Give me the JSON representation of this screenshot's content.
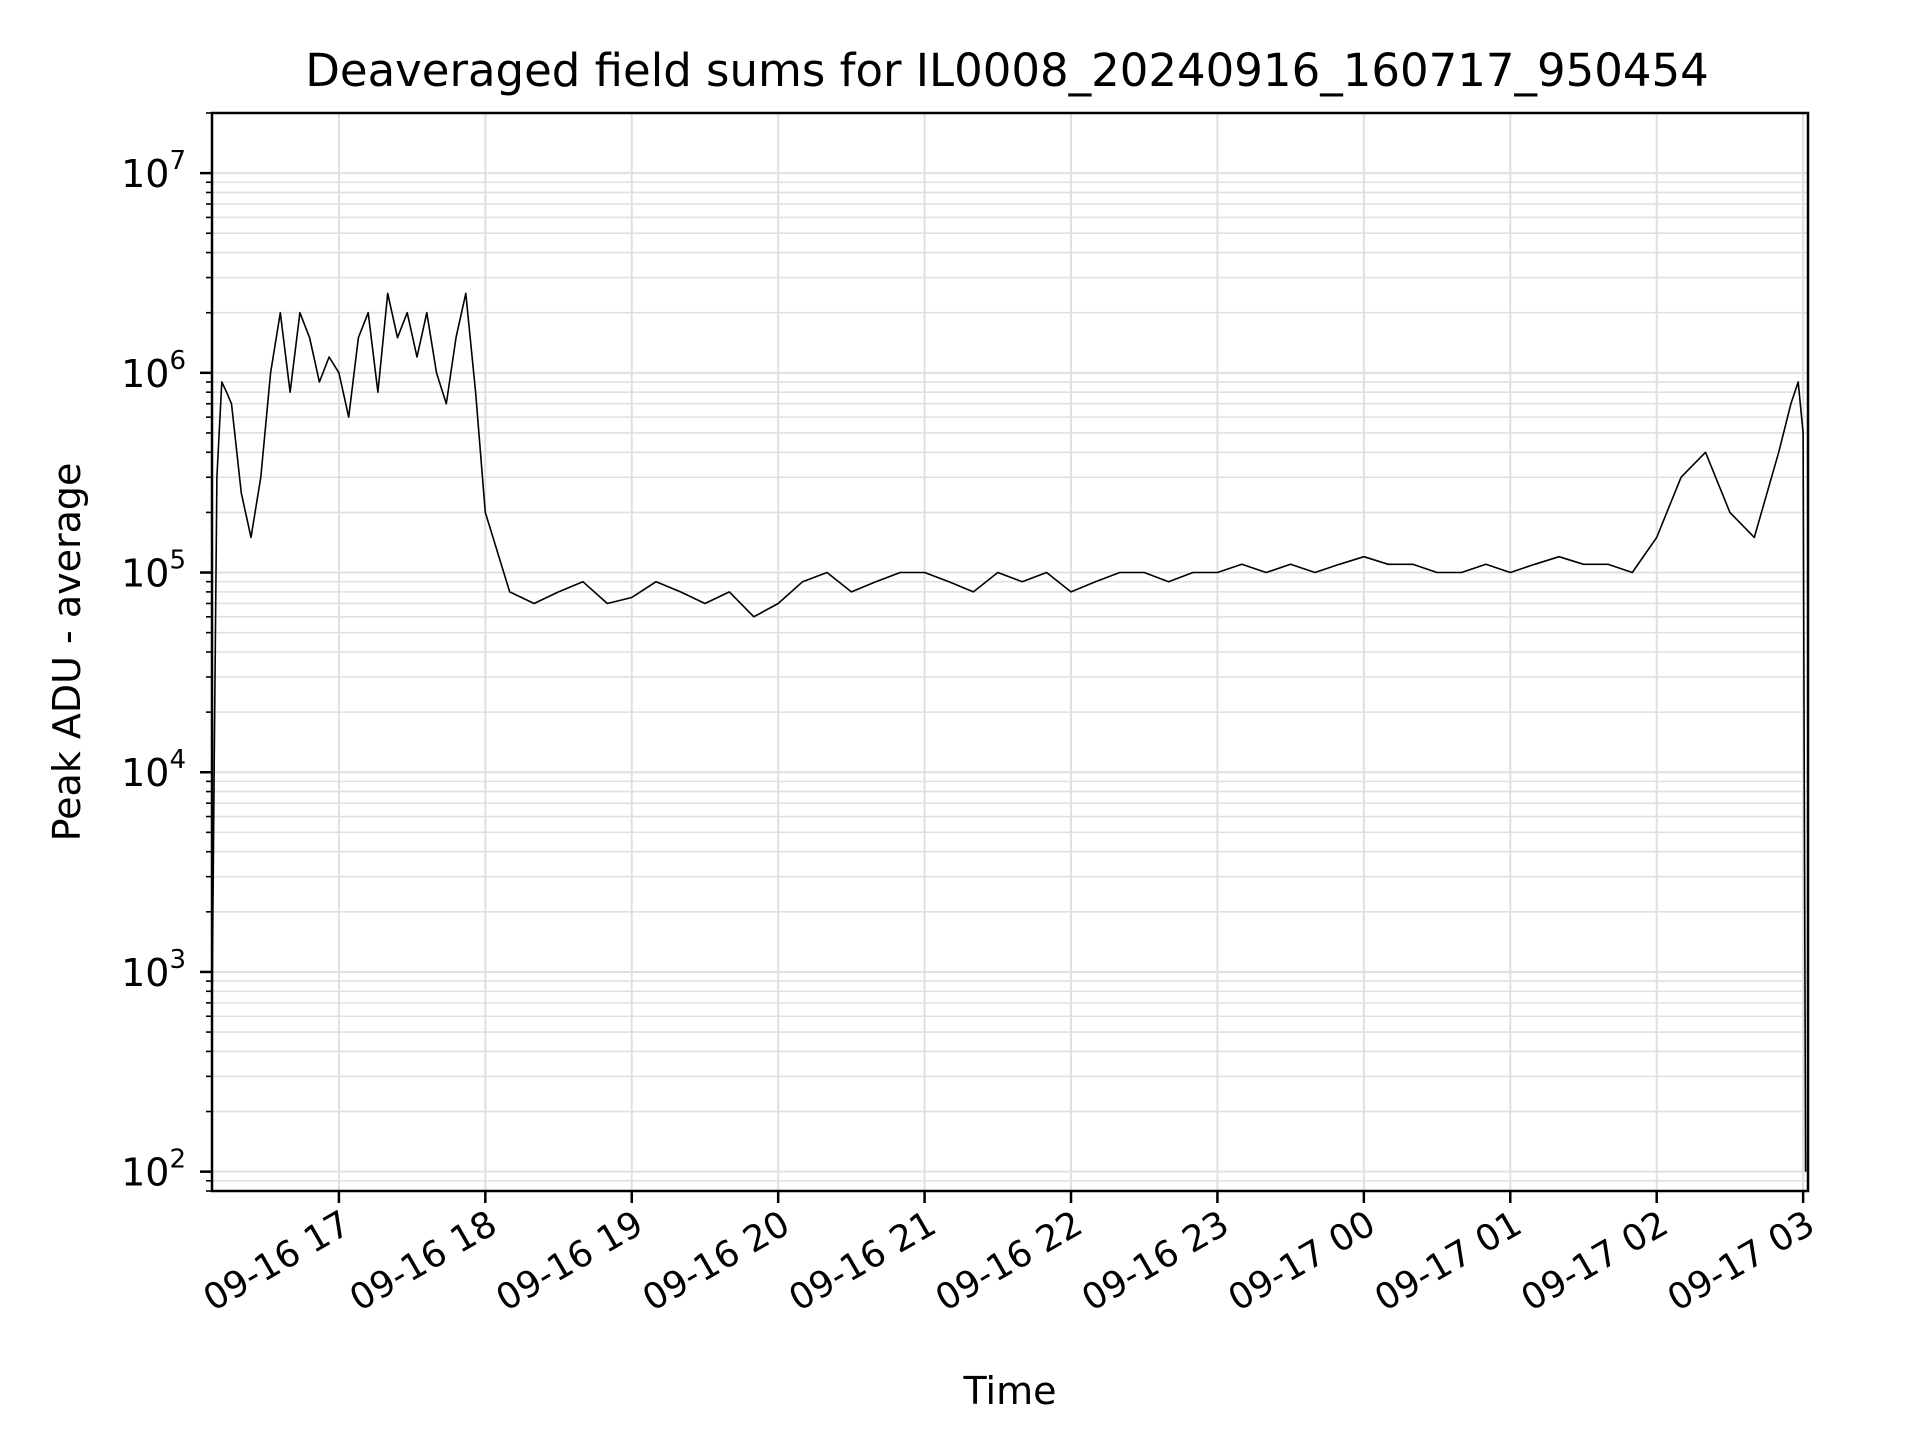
{
  "chart_data": {
    "type": "line",
    "title": "Deaveraged field sums for IL0008_20240916_160717_950454",
    "xlabel": "Time",
    "ylabel": "Peak ADU - average",
    "y_scale": "log",
    "ylim": [
      80,
      20000000
    ],
    "xlim": [
      "2024-09-16 16:08",
      "2024-09-17 03:02"
    ],
    "grid": true,
    "grid_minor": true,
    "line_color": "#000000",
    "grid_color": "#e0e0e0",
    "x_ticks": [
      {
        "value": "2024-09-16 17:00",
        "label": "09-16 17"
      },
      {
        "value": "2024-09-16 18:00",
        "label": "09-16 18"
      },
      {
        "value": "2024-09-16 19:00",
        "label": "09-16 19"
      },
      {
        "value": "2024-09-16 20:00",
        "label": "09-16 20"
      },
      {
        "value": "2024-09-16 21:00",
        "label": "09-16 21"
      },
      {
        "value": "2024-09-16 22:00",
        "label": "09-16 22"
      },
      {
        "value": "2024-09-16 23:00",
        "label": "09-16 23"
      },
      {
        "value": "2024-09-17 00:00",
        "label": "09-17 00"
      },
      {
        "value": "2024-09-17 01:00",
        "label": "09-17 01"
      },
      {
        "value": "2024-09-17 02:00",
        "label": "09-17 02"
      },
      {
        "value": "2024-09-17 03:00",
        "label": "09-17 03"
      }
    ],
    "y_ticks": [
      {
        "value": 100,
        "base": "10",
        "exp": "2"
      },
      {
        "value": 1000,
        "base": "10",
        "exp": "3"
      },
      {
        "value": 10000,
        "base": "10",
        "exp": "4"
      },
      {
        "value": 100000,
        "base": "10",
        "exp": "5"
      },
      {
        "value": 1000000,
        "base": "10",
        "exp": "6"
      },
      {
        "value": 10000000,
        "base": "10",
        "exp": "7"
      }
    ],
    "series": [
      {
        "x": [
          "2024-09-16 16:08",
          "2024-09-16 16:09",
          "2024-09-16 16:10",
          "2024-09-16 16:12",
          "2024-09-16 16:14",
          "2024-09-16 16:16",
          "2024-09-16 16:20",
          "2024-09-16 16:24",
          "2024-09-16 16:28",
          "2024-09-16 16:32",
          "2024-09-16 16:36",
          "2024-09-16 16:40",
          "2024-09-16 16:44",
          "2024-09-16 16:48",
          "2024-09-16 16:52",
          "2024-09-16 16:56",
          "2024-09-16 17:00",
          "2024-09-16 17:04",
          "2024-09-16 17:08",
          "2024-09-16 17:12",
          "2024-09-16 17:16",
          "2024-09-16 17:20",
          "2024-09-16 17:24",
          "2024-09-16 17:28",
          "2024-09-16 17:32",
          "2024-09-16 17:36",
          "2024-09-16 17:40",
          "2024-09-16 17:44",
          "2024-09-16 17:48",
          "2024-09-16 17:52",
          "2024-09-16 17:56",
          "2024-09-16 18:00",
          "2024-09-16 18:10",
          "2024-09-16 18:20",
          "2024-09-16 18:30",
          "2024-09-16 18:40",
          "2024-09-16 18:50",
          "2024-09-16 19:00",
          "2024-09-16 19:10",
          "2024-09-16 19:20",
          "2024-09-16 19:30",
          "2024-09-16 19:40",
          "2024-09-16 19:50",
          "2024-09-16 20:00",
          "2024-09-16 20:10",
          "2024-09-16 20:20",
          "2024-09-16 20:30",
          "2024-09-16 20:40",
          "2024-09-16 20:50",
          "2024-09-16 21:00",
          "2024-09-16 21:10",
          "2024-09-16 21:20",
          "2024-09-16 21:30",
          "2024-09-16 21:40",
          "2024-09-16 21:50",
          "2024-09-16 22:00",
          "2024-09-16 22:10",
          "2024-09-16 22:20",
          "2024-09-16 22:30",
          "2024-09-16 22:40",
          "2024-09-16 22:50",
          "2024-09-16 23:00",
          "2024-09-16 23:10",
          "2024-09-16 23:20",
          "2024-09-16 23:30",
          "2024-09-16 23:40",
          "2024-09-16 23:50",
          "2024-09-17 00:00",
          "2024-09-17 00:10",
          "2024-09-17 00:20",
          "2024-09-17 00:30",
          "2024-09-17 00:40",
          "2024-09-17 00:50",
          "2024-09-17 01:00",
          "2024-09-17 01:10",
          "2024-09-17 01:20",
          "2024-09-17 01:30",
          "2024-09-17 01:40",
          "2024-09-17 01:50",
          "2024-09-17 02:00",
          "2024-09-17 02:10",
          "2024-09-17 02:20",
          "2024-09-17 02:30",
          "2024-09-17 02:40",
          "2024-09-17 02:50",
          "2024-09-17 02:55",
          "2024-09-17 02:58",
          "2024-09-17 03:00",
          "2024-09-17 03:01"
        ],
        "y": [
          600,
          14000,
          300000,
          900000,
          800000,
          700000,
          250000,
          150000,
          300000,
          1000000,
          2000000,
          800000,
          2000000,
          1500000,
          900000,
          1200000,
          1000000,
          600000,
          1500000,
          2000000,
          800000,
          2500000,
          1500000,
          2000000,
          1200000,
          2000000,
          1000000,
          700000,
          1500000,
          2500000,
          800000,
          200000,
          80000,
          70000,
          80000,
          90000,
          70000,
          75000,
          90000,
          80000,
          70000,
          80000,
          60000,
          70000,
          90000,
          100000,
          80000,
          90000,
          100000,
          100000,
          90000,
          80000,
          100000,
          90000,
          100000,
          80000,
          90000,
          100000,
          100000,
          90000,
          100000,
          100000,
          110000,
          100000,
          110000,
          100000,
          110000,
          120000,
          110000,
          110000,
          100000,
          100000,
          110000,
          100000,
          110000,
          120000,
          110000,
          110000,
          100000,
          150000,
          300000,
          400000,
          200000,
          150000,
          400000,
          700000,
          900000,
          500000,
          100
        ]
      }
    ]
  }
}
